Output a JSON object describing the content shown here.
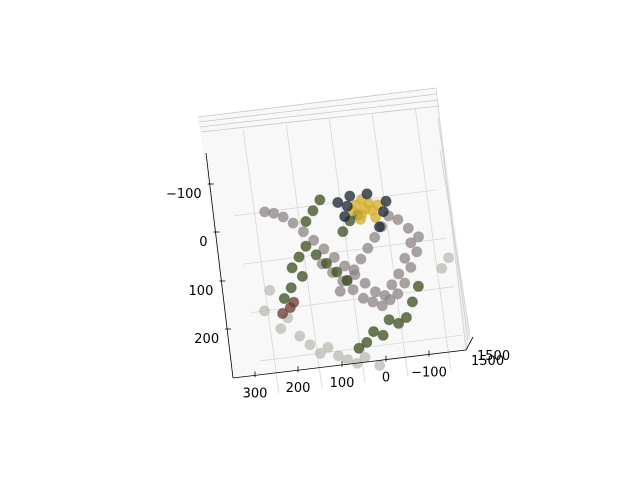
{
  "chart_data": {
    "type": "scatter3d",
    "title": "",
    "xlabel": "",
    "ylabel": "",
    "zlabel": "",
    "grid": true,
    "x_axis": {
      "ticks": [
        -100,
        0,
        100,
        200,
        300
      ],
      "tick_labels": [
        "−100",
        "0",
        "100",
        "200",
        "300"
      ]
    },
    "y_axis": {
      "ticks": [
        -100,
        0,
        100,
        200
      ],
      "tick_labels": [
        "−100",
        "0",
        "100",
        "200"
      ]
    },
    "z_axis": {
      "ticks": [
        1500,
        1500
      ],
      "tick_labels": [
        "1500",
        "1500"
      ]
    },
    "series": [
      {
        "color": "#8f8686",
        "points": [
          [
            -60,
            0,
            1500
          ],
          [
            -40,
            30,
            1500
          ],
          [
            -20,
            60,
            1500
          ],
          [
            0,
            80,
            1500
          ],
          [
            20,
            100,
            1500
          ],
          [
            40,
            90,
            1500
          ],
          [
            60,
            70,
            1500
          ],
          [
            80,
            50,
            1500
          ],
          [
            100,
            30,
            1500
          ],
          [
            120,
            10,
            1500
          ],
          [
            140,
            -10,
            1500
          ],
          [
            160,
            -30,
            1500
          ],
          [
            180,
            -50,
            1500
          ],
          [
            200,
            -70,
            1500
          ],
          [
            220,
            -85,
            1500
          ],
          [
            240,
            -95,
            1500
          ],
          [
            260,
            -100,
            1500
          ],
          [
            150,
            20,
            1500
          ],
          [
            130,
            40,
            1500
          ],
          [
            110,
            60,
            1500
          ],
          [
            90,
            80,
            1500
          ],
          [
            70,
            100,
            1500
          ],
          [
            50,
            110,
            1500
          ],
          [
            30,
            120,
            1500
          ],
          [
            10,
            110,
            1500
          ],
          [
            -10,
            100,
            1500
          ],
          [
            -30,
            80,
            1500
          ],
          [
            -50,
            50,
            1500
          ],
          [
            -70,
            20,
            1500
          ],
          [
            -80,
            -10,
            1500
          ],
          [
            -60,
            -30,
            1500
          ],
          [
            -40,
            -50,
            1500
          ],
          [
            -20,
            -60,
            1500
          ],
          [
            0,
            -40,
            1500
          ],
          [
            20,
            -20,
            1500
          ],
          [
            40,
            0,
            1500
          ],
          [
            60,
            20,
            1500
          ],
          [
            80,
            40,
            1500
          ],
          [
            100,
            60,
            1500
          ],
          [
            120,
            80,
            1500
          ]
        ]
      },
      {
        "color": "#3b4f1e",
        "points": [
          [
            180,
            -20,
            1500
          ],
          [
            200,
            0,
            1500
          ],
          [
            220,
            20,
            1500
          ],
          [
            160,
            0,
            1500
          ],
          [
            140,
            20,
            1500
          ],
          [
            120,
            40,
            1500
          ],
          [
            100,
            60,
            1500
          ],
          [
            90,
            -40,
            1500
          ],
          [
            70,
            -60,
            1500
          ],
          [
            50,
            -70,
            1500
          ],
          [
            20,
            150,
            1500
          ],
          [
            0,
            160,
            1500
          ],
          [
            -20,
            150,
            1500
          ],
          [
            40,
            180,
            1500
          ],
          [
            60,
            170,
            1500
          ],
          [
            80,
            190,
            1500
          ],
          [
            100,
            200,
            1500
          ],
          [
            -40,
            120,
            1500
          ],
          [
            -60,
            90,
            1500
          ],
          [
            200,
            40,
            1500
          ],
          [
            230,
            60,
            1500
          ],
          [
            250,
            80,
            1500
          ],
          [
            170,
            -70,
            1500
          ],
          [
            150,
            -90,
            1500
          ],
          [
            130,
            -110,
            1500
          ]
        ]
      },
      {
        "color": "#d4ad2a",
        "points": [
          [
            40,
            -70,
            1500
          ],
          [
            30,
            -80,
            1500
          ],
          [
            20,
            -90,
            1500
          ],
          [
            50,
            -90,
            1500
          ],
          [
            60,
            -80,
            1500
          ],
          [
            10,
            -60,
            1500
          ],
          [
            0,
            -85,
            1500
          ],
          [
            35,
            -100,
            1500
          ],
          [
            15,
            -75,
            1500
          ],
          [
            45,
            -60,
            1500
          ]
        ]
      },
      {
        "color": "#1a2330",
        "points": [
          [
            70,
            -90,
            1500
          ],
          [
            80,
            -70,
            1500
          ],
          [
            60,
            -110,
            1500
          ],
          [
            -10,
            -70,
            1500
          ],
          [
            -20,
            -90,
            1500
          ],
          [
            20,
            -110,
            1500
          ],
          [
            90,
            -100,
            1500
          ],
          [
            5,
            -40,
            1500
          ]
        ]
      },
      {
        "color": "#b9bdb4",
        "points": [
          [
            250,
            120,
            1500
          ],
          [
            270,
            140,
            1500
          ],
          [
            230,
            160,
            1500
          ],
          [
            210,
            180,
            1500
          ],
          [
            190,
            200,
            1500
          ],
          [
            170,
            190,
            1500
          ],
          [
            150,
            210,
            1500
          ],
          [
            130,
            220,
            1500
          ],
          [
            110,
            230,
            1500
          ],
          [
            90,
            220,
            1500
          ],
          [
            -120,
            60,
            1500
          ],
          [
            -140,
            40,
            1500
          ],
          [
            280,
            60,
            1500
          ],
          [
            300,
            100,
            1500
          ],
          [
            60,
            240,
            1500
          ]
        ]
      },
      {
        "color": "#6b3a30",
        "points": [
          [
            240,
            100,
            1500
          ],
          [
            230,
            90,
            1500
          ],
          [
            260,
            110,
            1500
          ]
        ]
      }
    ]
  }
}
